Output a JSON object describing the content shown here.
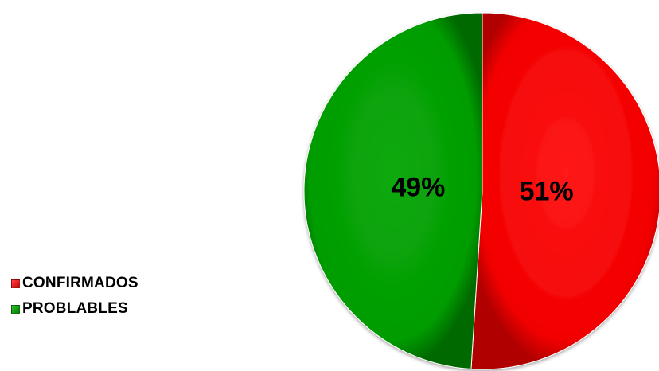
{
  "chart_data": {
    "type": "pie",
    "title": "",
    "start_angle": "top",
    "direction": "clockwise",
    "legend_position": "left-bottom",
    "slices": [
      {
        "name": "CONFIRMADOS",
        "value": 51,
        "label": "51%",
        "color": "#ff0000"
      },
      {
        "name": "PROBLABLES",
        "value": 49,
        "label": "49%",
        "color": "#00a000"
      }
    ]
  }
}
